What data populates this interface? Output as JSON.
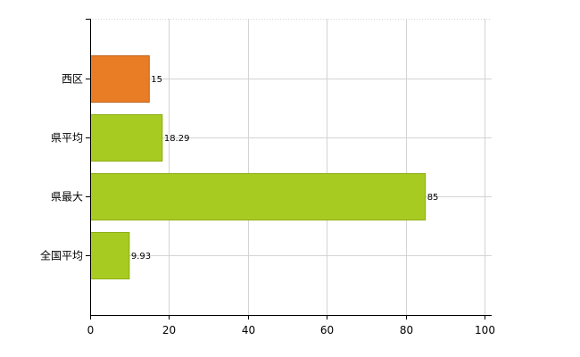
{
  "chart_data": {
    "type": "bar",
    "orientation": "horizontal",
    "categories": [
      "西区",
      "県平均",
      "県最大",
      "全国平均"
    ],
    "values": [
      15,
      18.29,
      85,
      9.93
    ],
    "value_labels": [
      "15",
      "18.29",
      "85",
      "9.93"
    ],
    "bar_colors": [
      "#e87d25",
      "#a8cb22",
      "#a8cb22",
      "#a8cb22"
    ],
    "bar_border_colors": [
      "#c0641a",
      "#8dad13",
      "#8dad13",
      "#8dad13"
    ],
    "xlim": [
      0,
      100
    ],
    "x_ticks": [
      0,
      20,
      40,
      60,
      80,
      100
    ],
    "x_tick_labels": [
      "0",
      "20",
      "40",
      "60",
      "80",
      "100"
    ],
    "grid": true,
    "legend": "none",
    "title": "",
    "xlabel": "",
    "ylabel": ""
  }
}
